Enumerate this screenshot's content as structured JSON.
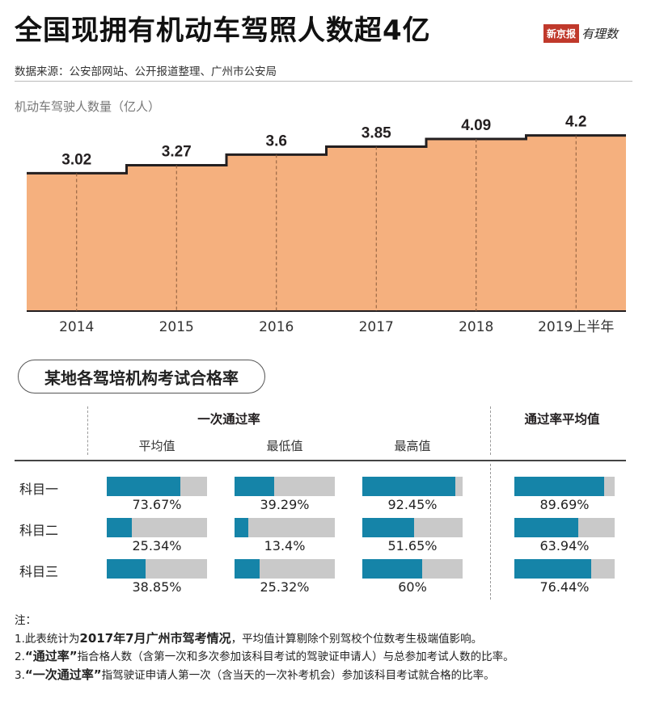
{
  "header": {
    "title": "全国现拥有机动车驾照人数超4亿",
    "brand_name": "新京报",
    "brand_column": "有理数",
    "source": "数据来源：公安部网站、公开报道整理、广州市公安局"
  },
  "chart_data": [
    {
      "type": "area",
      "title": "全国现拥有机动车驾照人数超4亿",
      "ylabel": "机动车驾驶人数量（亿人）",
      "categories": [
        "2014",
        "2015",
        "2016",
        "2017",
        "2018",
        "2019上半年"
      ],
      "values": [
        3.02,
        3.27,
        3.6,
        3.85,
        4.09,
        4.2
      ],
      "value_labels": [
        "3.02",
        "3.27",
        "3.6",
        "3.85",
        "4.09",
        "4.2"
      ],
      "ylim": [
        0,
        4.6
      ],
      "grid": false,
      "color": "#f5b07e"
    },
    {
      "type": "bar",
      "title": "某地各驾培机构考试合格率",
      "group_header": "一次通过率",
      "avg_header": "通过率平均值",
      "columns": [
        "平均值",
        "最低值",
        "最高值",
        ""
      ],
      "rows": [
        "科目一",
        "科目二",
        "科目三"
      ],
      "values": [
        [
          73.67,
          39.29,
          92.45,
          89.69
        ],
        [
          25.34,
          13.4,
          51.65,
          63.94
        ],
        [
          38.85,
          25.32,
          60,
          76.44
        ]
      ],
      "labels": [
        [
          "73.67%",
          "39.29%",
          "92.45%",
          "89.69%"
        ],
        [
          "25.34%",
          "13.4%",
          "51.65%",
          "63.94%"
        ],
        [
          "38.85%",
          "25.32%",
          "60%",
          "76.44%"
        ]
      ],
      "ylim": [
        0,
        100
      ],
      "fill_color": "#1584a8",
      "track_color": "#c9c9c9"
    }
  ],
  "notes": {
    "head": "注：",
    "l1a": "1.此表统计为",
    "l1b": "2017年7月广州市驾考情况",
    "l1c": "，平均值计算剔除个别驾校个位数考生极端值影响。",
    "l2a": "2.",
    "l2b": "“通过率”",
    "l2c": "指合格人数（含第一次和多次参加该科目考试的驾驶证申请人）与总参加考试人数的比率。",
    "l3a": "3.",
    "l3b": "“一次通过率”",
    "l3c": "指驾驶证申请人第一次（含当天的一次补考机会）参加该科目考试就合格的比率。"
  }
}
